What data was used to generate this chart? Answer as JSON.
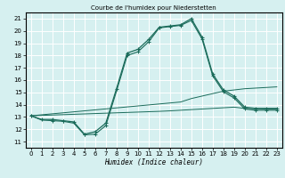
{
  "title": "Courbe de l'humidex pour Niederstetten",
  "xlabel": "Humidex (Indice chaleur)",
  "bg_color": "#d6f0f0",
  "grid_color": "#ffffff",
  "line_color": "#1a6b5a",
  "xlim": [
    -0.5,
    23.5
  ],
  "ylim": [
    10.5,
    21.5
  ],
  "yticks": [
    11,
    12,
    13,
    14,
    15,
    16,
    17,
    18,
    19,
    20,
    21
  ],
  "xticks": [
    0,
    1,
    2,
    3,
    4,
    5,
    6,
    7,
    8,
    9,
    10,
    11,
    12,
    13,
    14,
    15,
    16,
    17,
    18,
    19,
    20,
    21,
    22,
    23
  ],
  "hours": [
    0,
    1,
    2,
    3,
    4,
    5,
    6,
    7,
    8,
    9,
    10,
    11,
    12,
    13,
    14,
    15,
    16,
    17,
    18,
    19,
    20,
    21,
    22,
    23
  ],
  "curve1": [
    13.1,
    12.8,
    12.8,
    12.7,
    12.6,
    11.6,
    11.8,
    12.5,
    15.3,
    18.2,
    18.5,
    19.3,
    20.3,
    20.4,
    20.5,
    21.0,
    19.5,
    16.5,
    15.2,
    14.7,
    13.8,
    13.7,
    13.7,
    13.7
  ],
  "curve2": [
    13.1,
    12.75,
    12.7,
    12.65,
    12.5,
    11.55,
    11.6,
    12.3,
    15.1,
    18.0,
    18.3,
    19.1,
    20.25,
    20.35,
    20.45,
    20.85,
    19.35,
    16.35,
    15.05,
    14.55,
    13.65,
    13.55,
    13.55,
    13.55
  ],
  "line3": [
    13.1,
    13.18,
    13.26,
    13.34,
    13.42,
    13.5,
    13.58,
    13.66,
    13.74,
    13.82,
    13.9,
    13.98,
    14.06,
    14.14,
    14.22,
    14.5,
    14.7,
    14.9,
    15.1,
    15.2,
    15.3,
    15.35,
    15.4,
    15.45
  ],
  "line4": [
    13.1,
    13.13,
    13.16,
    13.19,
    13.22,
    13.25,
    13.28,
    13.31,
    13.34,
    13.37,
    13.4,
    13.43,
    13.46,
    13.5,
    13.55,
    13.6,
    13.65,
    13.7,
    13.75,
    13.8,
    13.7,
    13.68,
    13.65,
    13.65
  ]
}
